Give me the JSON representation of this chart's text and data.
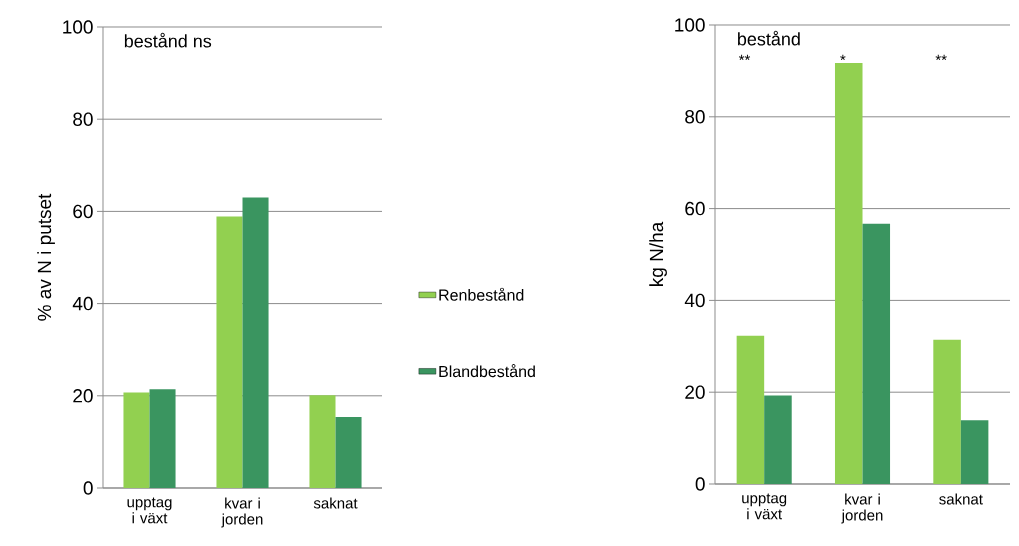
{
  "chart_data": [
    {
      "type": "bar",
      "ylabel": "% av N i putset",
      "categories": [
        "upptag i växt",
        "kvar i jorden",
        "saknat"
      ],
      "series": [
        {
          "name": "Renbestånd",
          "color": "#92d050",
          "values": [
            20.7,
            58.9,
            20.1
          ]
        },
        {
          "name": "Blandbestånd",
          "color": "#3a9560",
          "values": [
            21.4,
            63.0,
            15.4
          ]
        }
      ],
      "ylim": [
        0,
        100
      ],
      "yticks": [
        0,
        20,
        40,
        60,
        80,
        100
      ],
      "grid": "y",
      "legend": "right",
      "annotations": [
        "bestånd  ns"
      ]
    },
    {
      "type": "bar",
      "ylabel": "kg N/ha",
      "categories": [
        "upptag i växt",
        "kvar i jorden",
        "saknat"
      ],
      "series": [
        {
          "color": "#92d050",
          "values": [
            32.3,
            91.7,
            31.4
          ]
        },
        {
          "color": "#3a9560",
          "values": [
            19.3,
            56.7,
            13.9
          ]
        }
      ],
      "ylim": [
        0,
        100
      ],
      "yticks": [
        0,
        20,
        40,
        60,
        80,
        100
      ],
      "grid": "y",
      "annotations": [
        "bestånd",
        "**",
        "*",
        "**"
      ]
    }
  ]
}
